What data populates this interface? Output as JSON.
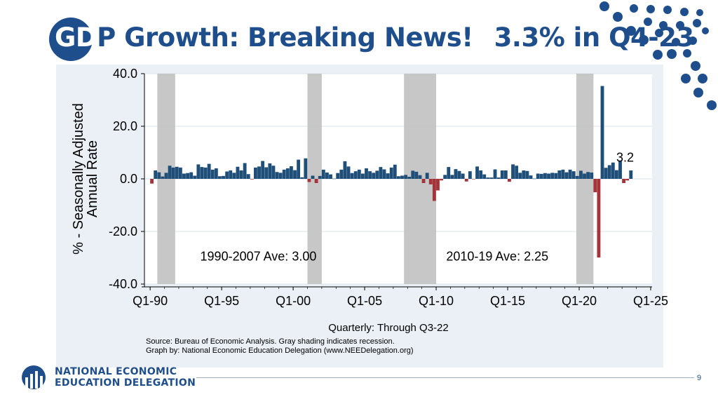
{
  "slide": {
    "title_part1": "GD",
    "title_part2": "P Growth: Breaking News!",
    "title_part3": "3.3% in Q4-23",
    "page_number": "9",
    "logo_line1": "NATIONAL ECONOMIC",
    "logo_line2": "EDUCATION DELEGATION",
    "source_line1": "Source: Bureau of Economic Analysis. Gray shading indicates recession.",
    "source_line2": "Graph by: National Economic Education Delegation (www.NEEDelegation.org)",
    "colors": {
      "brand": "#1f4e8c",
      "positive": "#1f4e79",
      "negative": "#a4343a",
      "recession": "#c4c4c4",
      "panel": "#eaf0f6"
    }
  },
  "chart_data": {
    "type": "bar",
    "xlabel": "Quarterly: Through Q3-22",
    "ylabel_line1": "% - Seasonally Adjusted",
    "ylabel_line2": "Annual Rate",
    "ylim": [
      -40,
      40
    ],
    "yticks": [
      "40.0",
      "20.0",
      "0.0",
      "-20.0",
      "-40.0"
    ],
    "ytick_values": [
      40,
      20,
      0,
      -20,
      -40
    ],
    "xticks": [
      "Q1-90",
      "Q1-95",
      "Q1-00",
      "Q1-05",
      "Q1-10",
      "Q1-15",
      "Q1-20",
      "Q1-25"
    ],
    "xtick_years": [
      1990,
      1995,
      2000,
      2005,
      2010,
      2015,
      2020,
      2025
    ],
    "xlim": [
      1989.6,
      2025.1
    ],
    "start": 1990.0,
    "grid": true,
    "recessions": [
      [
        1990.5,
        1991.75
      ],
      [
        2001.0,
        2002.0
      ],
      [
        2007.75,
        2010.0
      ],
      [
        2019.8,
        2021.0
      ]
    ],
    "annotations": [
      {
        "text": "1990-2007 Ave: 3.00",
        "x": 1993.5,
        "y": -31
      },
      {
        "text": "2010-19 Ave: 2.25",
        "x": 2010.7,
        "y": -31
      },
      {
        "text": "3.2",
        "x": 2022.6,
        "y": 6.5
      }
    ],
    "values": [
      -1.8,
      3.2,
      2.5,
      0.9,
      2.3,
      5.0,
      4.3,
      4.6,
      4.3,
      2.0,
      2.2,
      2.5,
      1.2,
      5.5,
      4.5,
      4.3,
      5.7,
      3.5,
      4.0,
      1.0,
      1.1,
      2.8,
      3.2,
      2.3,
      4.6,
      3.2,
      6.0,
      1.8,
      -0.2,
      4.3,
      4.7,
      6.8,
      4.4,
      5.9,
      5.0,
      2.6,
      2.3,
      3.5,
      4.0,
      4.8,
      3.3,
      7.3,
      0.6,
      7.8,
      -1.2,
      1.2,
      -1.6,
      1.1,
      3.5,
      2.4,
      1.7,
      0.1,
      2.2,
      3.5,
      6.7,
      4.7,
      2.2,
      2.9,
      3.5,
      2.0,
      4.0,
      2.9,
      2.3,
      3.1,
      4.5,
      3.6,
      2.1,
      4.3,
      5.4,
      1.0,
      1.2,
      1.5,
      0.8,
      3.1,
      2.7,
      1.4,
      -1.6,
      2.3,
      -2.1,
      -8.4,
      -4.4,
      -0.6,
      1.5,
      4.5,
      1.5,
      3.7,
      3.0,
      2.0,
      -1.0,
      2.9,
      -0.1,
      4.7,
      3.2,
      1.7,
      0.5,
      0.5,
      3.6,
      0.5,
      3.2,
      3.2,
      -1.1,
      5.5,
      5.0,
      2.3,
      3.2,
      3.0,
      1.3,
      0.1,
      2.0,
      1.9,
      2.2,
      2.0,
      2.3,
      2.2,
      3.2,
      3.5,
      2.5,
      3.5,
      2.9,
      1.1,
      3.1,
      2.0,
      2.6,
      2.4,
      -5.1,
      -29.9,
      35.3,
      4.2,
      5.2,
      6.2,
      3.3,
      7.0,
      -1.6,
      -0.6,
      3.2
    ]
  }
}
